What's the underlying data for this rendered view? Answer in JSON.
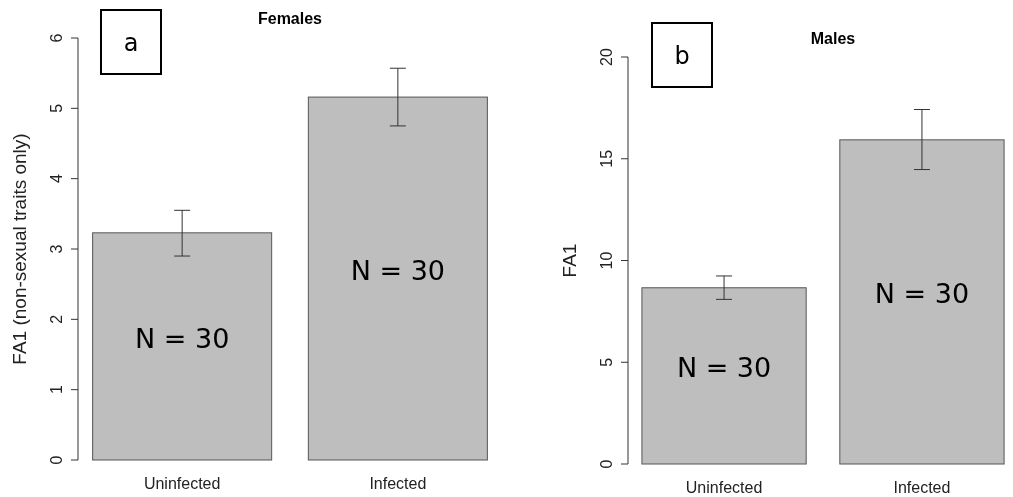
{
  "chart_data": [
    {
      "type": "bar",
      "title": "Females",
      "ylabel": "FA1 (non-sexual traits only)",
      "categories": [
        "Uninfected",
        "Infected"
      ],
      "values": [
        3.23,
        5.16
      ],
      "errors": [
        [
          2.9,
          3.55
        ],
        [
          4.75,
          5.57
        ]
      ],
      "color": "#bebebe",
      "ylim": [
        0,
        6
      ],
      "yticks": [
        0,
        1,
        2,
        3,
        4,
        5,
        6
      ],
      "grid": false,
      "annotations": [
        "a",
        "N = 30",
        "N = 30"
      ]
    },
    {
      "type": "bar",
      "title": "Males",
      "ylabel": "FA1",
      "categories": [
        "Uninfected",
        "Infected"
      ],
      "values": [
        8.66,
        15.93
      ],
      "errors": [
        [
          8.09,
          9.24
        ],
        [
          14.47,
          17.42
        ]
      ],
      "color": "#bebebe",
      "ylim": [
        0,
        20
      ],
      "yticks": [
        0,
        5,
        10,
        15,
        20
      ],
      "grid": false,
      "annotations": [
        "b",
        "N = 30",
        "N = 30"
      ]
    }
  ]
}
